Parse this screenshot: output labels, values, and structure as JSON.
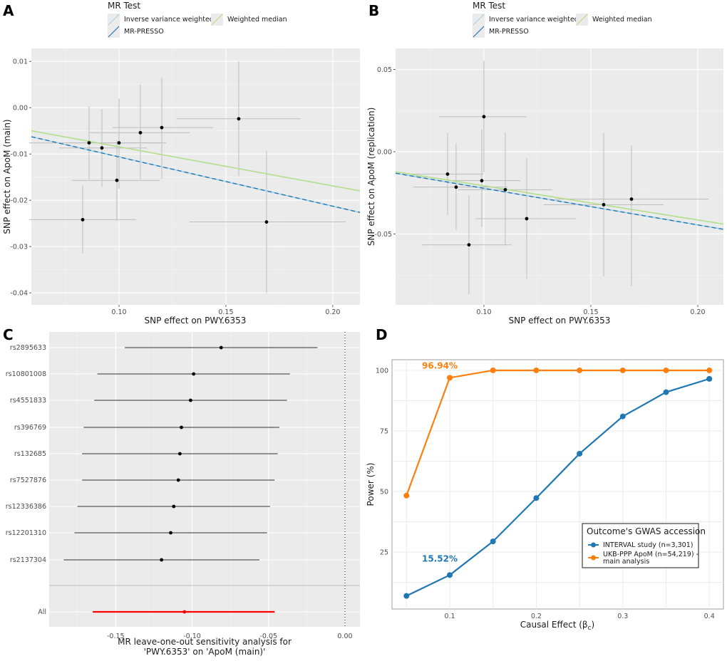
{
  "figure": {
    "panel_labels": [
      "A",
      "B",
      "C",
      "D"
    ]
  },
  "chart_data": [
    {
      "panel": "A",
      "type": "scatter",
      "xlabel": "SNP effect on PWY.6353",
      "ylabel": "SNP effect on ApoM (main)",
      "xlim": [
        0.059,
        0.2127
      ],
      "ylim": [
        -0.0426,
        0.0128
      ],
      "xticks": [
        0.1,
        0.15,
        0.2
      ],
      "xtick_labels": [
        "0.10",
        "0.15",
        "0.20"
      ],
      "yticks": [
        0.01,
        0.0,
        -0.01,
        -0.02,
        -0.03,
        -0.04
      ],
      "ytick_labels": [
        "0.01",
        "0.00",
        "-0.01",
        "-0.02",
        "-0.03",
        "-0.04"
      ],
      "grid": true,
      "legend": {
        "title": "MR Test",
        "placement": "top",
        "entries": [
          {
            "label": "Inverse variance weighted",
            "color": "#a6cee3",
            "style": "solid"
          },
          {
            "label": "Weighted median",
            "color": "#b2df8a",
            "style": "solid"
          },
          {
            "label": "MR-PRESSO",
            "color": "#1f78b4",
            "style": "dashed"
          }
        ]
      },
      "points": [
        {
          "x": 0.083,
          "y": -0.0242,
          "xerr": [
            0.058,
            0.108
          ],
          "yerr": [
            -0.0315,
            -0.0168
          ]
        },
        {
          "x": 0.086,
          "y": -0.0076,
          "xerr": [
            0.058,
            0.12
          ],
          "yerr": [
            -0.0155,
            0.0003
          ]
        },
        {
          "x": 0.092,
          "y": -0.0087,
          "xerr": [
            0.072,
            0.113
          ],
          "yerr": [
            -0.0171,
            -0.0003
          ]
        },
        {
          "x": 0.099,
          "y": -0.0157,
          "xerr": [
            0.078,
            0.119
          ],
          "yerr": [
            -0.0245,
            -0.007
          ]
        },
        {
          "x": 0.1,
          "y": -0.0076,
          "xerr": [
            0.077,
            0.122
          ],
          "yerr": [
            -0.0175,
            0.002
          ]
        },
        {
          "x": 0.11,
          "y": -0.0054,
          "xerr": [
            0.086,
            0.133
          ],
          "yerr": [
            -0.0155,
            0.005
          ]
        },
        {
          "x": 0.12,
          "y": -0.0043,
          "xerr": [
            0.097,
            0.144
          ],
          "yerr": [
            -0.0153,
            0.0065
          ]
        },
        {
          "x": 0.156,
          "y": -0.0024,
          "xerr": [
            0.127,
            0.185
          ],
          "yerr": [
            -0.0148,
            0.01
          ]
        },
        {
          "x": 0.169,
          "y": -0.0247,
          "xerr": [
            0.133,
            0.206
          ],
          "yerr": [
            -0.04,
            -0.0093
          ]
        }
      ],
      "lines": [
        {
          "name": "Inverse variance weighted",
          "slope": -0.1064,
          "intercept": 0.0,
          "color": "#a6cee3"
        },
        {
          "name": "MR-PRESSO",
          "slope": -0.1064,
          "intercept": 0.0,
          "color": "#1f78b4",
          "dashed": true
        },
        {
          "name": "Weighted median",
          "slope": -0.0845,
          "intercept": 0.0,
          "color": "#b2df8a"
        }
      ]
    },
    {
      "panel": "B",
      "type": "scatter",
      "xlabel": "SNP effect on PWY.6353",
      "ylabel": "SNP effect on ApoM (replication)",
      "xlim": [
        0.0587,
        0.212
      ],
      "ylim": [
        -0.0931,
        0.0628
      ],
      "xticks": [
        0.1,
        0.15,
        0.2
      ],
      "xtick_labels": [
        "0.10",
        "0.15",
        "0.20"
      ],
      "yticks": [
        0.05,
        0.0,
        -0.05
      ],
      "ytick_labels": [
        "0.05",
        "0.00",
        "-0.05"
      ],
      "grid": true,
      "legend": {
        "title": "MR Test",
        "placement": "top",
        "entries": [
          {
            "label": "Inverse variance weighted",
            "color": "#a6cee3",
            "style": "solid"
          },
          {
            "label": "Weighted median",
            "color": "#b2df8a",
            "style": "solid"
          },
          {
            "label": "MR-PRESSO",
            "color": "#1f78b4",
            "style": "dashed"
          }
        ]
      },
      "points": [
        {
          "x": 0.083,
          "y": -0.0136,
          "xerr": [
            0.066,
            0.1
          ],
          "yerr": [
            -0.0386,
            0.0114
          ]
        },
        {
          "x": 0.087,
          "y": -0.0215,
          "xerr": [
            0.067,
            0.111
          ],
          "yerr": [
            -0.0475,
            0.005
          ]
        },
        {
          "x": 0.093,
          "y": -0.0566,
          "xerr": [
            0.071,
            0.113
          ],
          "yerr": [
            -0.0866,
            -0.0265
          ]
        },
        {
          "x": 0.099,
          "y": -0.0176,
          "xerr": [
            0.083,
            0.117
          ],
          "yerr": [
            -0.0458,
            0.0135
          ]
        },
        {
          "x": 0.1,
          "y": 0.0213,
          "xerr": [
            0.079,
            0.12
          ],
          "yerr": [
            -0.0125,
            0.0553
          ]
        },
        {
          "x": 0.11,
          "y": -0.0231,
          "xerr": [
            0.088,
            0.132
          ],
          "yerr": [
            -0.057,
            0.0118
          ]
        },
        {
          "x": 0.12,
          "y": -0.0407,
          "xerr": [
            0.096,
            0.143
          ],
          "yerr": [
            -0.0773,
            -0.004
          ]
        },
        {
          "x": 0.156,
          "y": -0.0322,
          "xerr": [
            0.128,
            0.184
          ],
          "yerr": [
            -0.0756,
            0.0112
          ]
        },
        {
          "x": 0.169,
          "y": -0.0288,
          "xerr": [
            0.133,
            0.205
          ],
          "yerr": [
            -0.0816,
            0.0038
          ]
        }
      ],
      "lines": [
        {
          "name": "Inverse variance weighted",
          "slope": -0.2225,
          "intercept": 0.0,
          "color": "#a6cee3"
        },
        {
          "name": "MR-PRESSO",
          "slope": -0.2225,
          "intercept": 0.0,
          "color": "#1f78b4",
          "dashed": true
        },
        {
          "name": "Weighted median",
          "slope": -0.2075,
          "intercept": 0.0,
          "color": "#b2df8a"
        }
      ]
    },
    {
      "panel": "C",
      "type": "forest",
      "xlabel_lines": [
        "MR leave-one-out sensitivity analysis for",
        "'PWY.6353' on 'ApoM (main)'"
      ],
      "xlim": [
        -0.1935,
        0.0098
      ],
      "xticks": [
        -0.15,
        -0.1,
        -0.05,
        0.0
      ],
      "xtick_labels": [
        "-0.15",
        "-0.10",
        "-0.05",
        "0.00"
      ],
      "reference_line": 0.0,
      "grid": true,
      "rows": [
        {
          "label": "rs2895633",
          "estimate": -0.081,
          "lower": -0.144,
          "upper": -0.018
        },
        {
          "label": "rs10801008",
          "estimate": -0.099,
          "lower": -0.162,
          "upper": -0.036
        },
        {
          "label": "rs4551833",
          "estimate": -0.101,
          "lower": -0.164,
          "upper": -0.038
        },
        {
          "label": "rs396769",
          "estimate": -0.107,
          "lower": -0.171,
          "upper": -0.043
        },
        {
          "label": "rs132685",
          "estimate": -0.108,
          "lower": -0.172,
          "upper": -0.044
        },
        {
          "label": "rs7527876",
          "estimate": -0.109,
          "lower": -0.172,
          "upper": -0.046
        },
        {
          "label": "rs12336386",
          "estimate": -0.112,
          "lower": -0.175,
          "upper": -0.049
        },
        {
          "label": "rs12201310",
          "estimate": -0.114,
          "lower": -0.177,
          "upper": -0.051
        },
        {
          "label": "rs2137304",
          "estimate": -0.12,
          "lower": -0.184,
          "upper": -0.056
        }
      ],
      "overall": {
        "label": "All",
        "estimate": -0.105,
        "lower": -0.165,
        "upper": -0.046,
        "color": "#ff0000"
      }
    },
    {
      "panel": "D",
      "type": "line",
      "xlabel": "Causal Effect (β",
      "xlabel_sub": "c",
      "xlabel_close": ")",
      "ylabel": "Power (%)",
      "xlim": [
        0.0333,
        0.4163
      ],
      "ylim": [
        1.5,
        104.4
      ],
      "x": [
        0.05,
        0.1,
        0.15,
        0.2,
        0.25,
        0.3,
        0.35,
        0.4
      ],
      "xticks": [
        0.1,
        0.2,
        0.3,
        0.4
      ],
      "xtick_labels": [
        "0.1",
        "0.2",
        "0.3",
        "0.4"
      ],
      "yticks": [
        25,
        50,
        75,
        100
      ],
      "ytick_labels": [
        "25",
        "50",
        "75",
        "100"
      ],
      "grid": true,
      "series": [
        {
          "name": "INTERVAL study (n=3,301)",
          "color": "#1f77b4",
          "values": [
            6.9,
            15.52,
            29.4,
            47.3,
            65.6,
            81.0,
            91.0,
            96.5
          ]
        },
        {
          "name": "UKB-PPP ApoM (n=54,219) - main analysis",
          "name_lines": [
            "UKB-PPP ApoM (n=54,219) -",
            "main analysis"
          ],
          "color": "#ff7f0e",
          "values": [
            48.3,
            96.94,
            100,
            100,
            100,
            100,
            100,
            100
          ]
        }
      ],
      "annotations": [
        {
          "text": "96.94%",
          "series": 1,
          "color": "#ff7f0e"
        },
        {
          "text": "15.52%",
          "series": 0,
          "color": "#1f77b4"
        }
      ],
      "legend": {
        "title": "Outcome's GWAS accession",
        "placement": "center-right"
      }
    }
  ]
}
